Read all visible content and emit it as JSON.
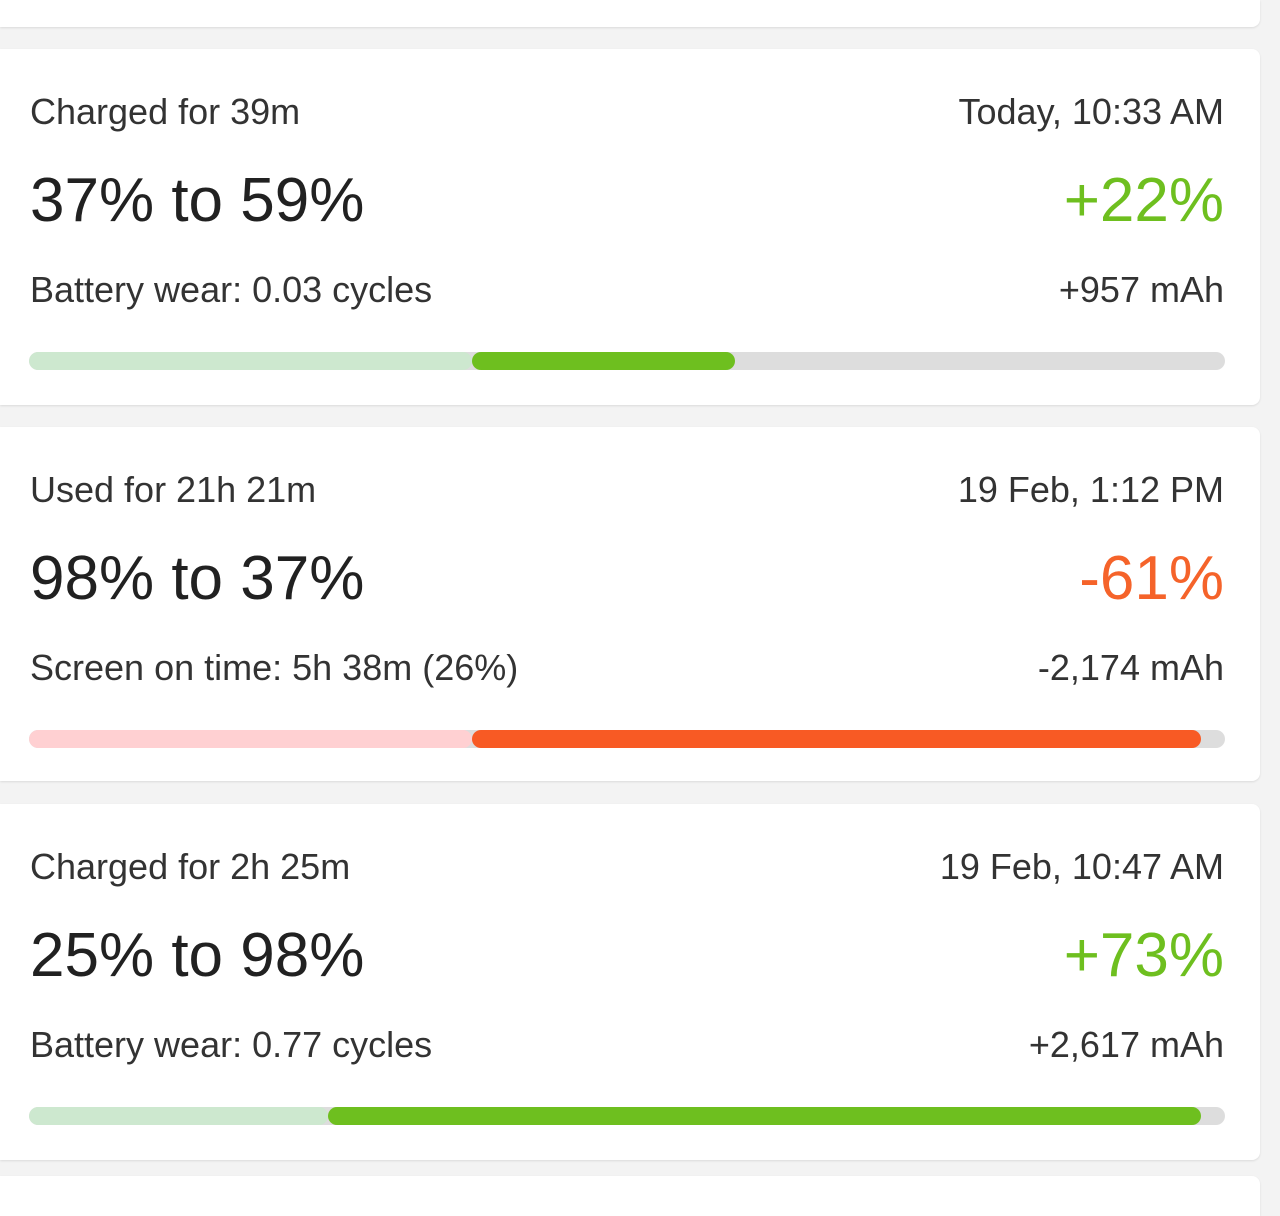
{
  "colors": {
    "charge": "#6ebf1f",
    "charge_light": "#cde8cf",
    "discharge": "#f85a24",
    "discharge_light": "#ffd0d2",
    "track": "#dddddd"
  },
  "sessions": [
    {
      "kind": "charge",
      "duration_label": "Charged for 39m",
      "timestamp": "Today, 10:33 AM",
      "range_label": "37% to 59%",
      "delta_percent": "+22%",
      "detail_label": "Battery wear: 0.03 cycles",
      "delta_mah": "+957 mAh",
      "start_level": 37,
      "end_level": 59
    },
    {
      "kind": "discharge",
      "duration_label": "Used for 21h 21m",
      "timestamp": "19 Feb, 1:12 PM",
      "range_label": "98% to 37%",
      "delta_percent": "-61%",
      "detail_label": "Screen on time: 5h 38m (26%)",
      "delta_mah": "-2,174 mAh",
      "start_level": 98,
      "end_level": 37
    },
    {
      "kind": "charge",
      "duration_label": "Charged for 2h 25m",
      "timestamp": "19 Feb, 10:47 AM",
      "range_label": "25% to 98%",
      "delta_percent": "+73%",
      "detail_label": "Battery wear: 0.77 cycles",
      "delta_mah": "+2,617 mAh",
      "start_level": 25,
      "end_level": 98
    }
  ]
}
